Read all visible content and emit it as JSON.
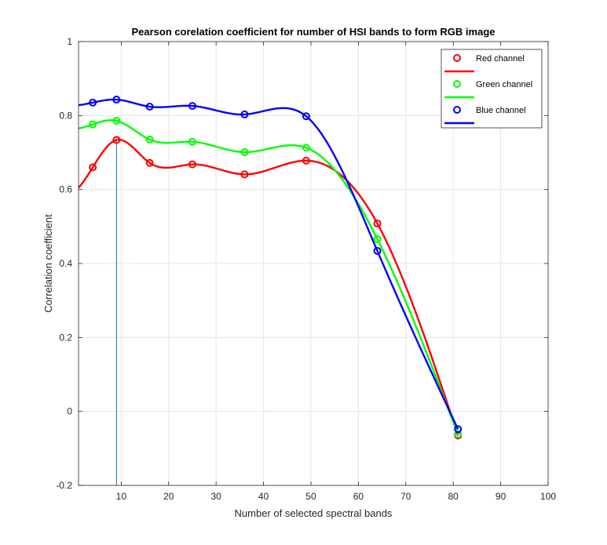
{
  "chart_data": {
    "type": "line",
    "title": "Pearson corelation coefficient for number of HSI bands to form RGB image",
    "xlabel": "Number of selected spectral bands",
    "ylabel": "Correlation coefficient",
    "xlim": [
      1,
      100
    ],
    "ylim": [
      -0.2,
      1
    ],
    "xticks": [
      10,
      20,
      30,
      40,
      50,
      60,
      70,
      80,
      90,
      100
    ],
    "yticks": [
      -0.2,
      0,
      0.2,
      0.4,
      0.6,
      0.8,
      1
    ],
    "ytick_labels": [
      "-0.2",
      "0",
      "0.2",
      "0.4",
      "0.6",
      "0.8",
      "1"
    ],
    "grid": true,
    "legend_position": "top-right",
    "x": [
      4,
      9,
      16,
      25,
      36,
      49,
      64,
      81
    ],
    "series": [
      {
        "name": "Red channel",
        "color": "#ff0000",
        "values": [
          0.66,
          0.734,
          0.672,
          0.668,
          0.641,
          0.678,
          0.508,
          -0.065
        ]
      },
      {
        "name": "Green channel",
        "color": "#00ff00",
        "values": [
          0.776,
          0.786,
          0.735,
          0.729,
          0.701,
          0.713,
          0.466,
          -0.062
        ]
      },
      {
        "name": "Blue channel",
        "color": "#0000ff",
        "values": [
          0.835,
          0.843,
          0.824,
          0.826,
          0.803,
          0.798,
          0.434,
          -0.048
        ]
      }
    ],
    "vline_x": 9,
    "vline_color": "#0072bd"
  }
}
